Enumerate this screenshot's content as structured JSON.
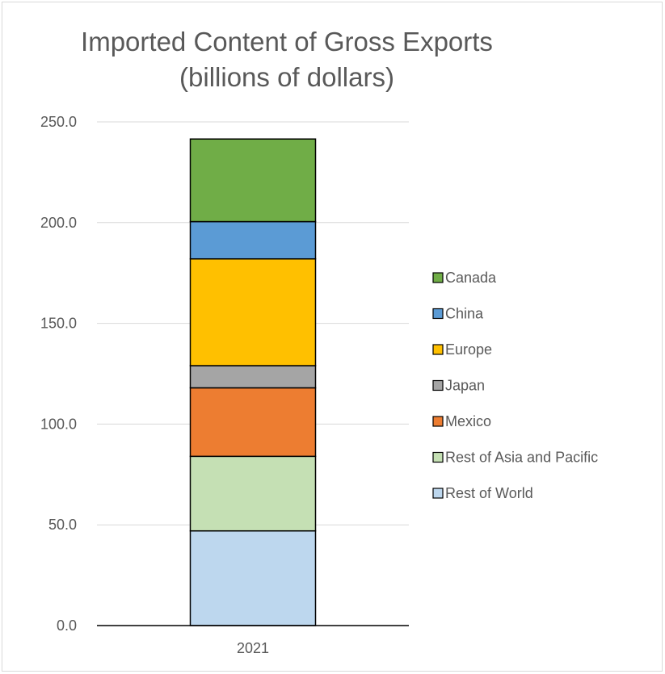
{
  "chart_data": {
    "type": "bar",
    "stacked": true,
    "title_lines": [
      "Imported Content of Gross Exports",
      "(billions of dollars)"
    ],
    "categories": [
      "2021"
    ],
    "ylim": [
      0,
      250
    ],
    "y_ticks": [
      "0.0",
      "50.0",
      "100.0",
      "150.0",
      "200.0",
      "250.0"
    ],
    "y_tick_values": [
      0,
      50,
      100,
      150,
      200,
      250
    ],
    "grid": true,
    "legend_position": "right",
    "series": [
      {
        "name": "Rest of World",
        "values": [
          47.0
        ],
        "color": "#bdd7ee"
      },
      {
        "name": "Rest of Asia and Pacific",
        "values": [
          37.0
        ],
        "color": "#c5e0b4"
      },
      {
        "name": "Mexico",
        "values": [
          34.0
        ],
        "color": "#ed7d31"
      },
      {
        "name": "Japan",
        "values": [
          11.0
        ],
        "color": "#a5a5a5"
      },
      {
        "name": "Europe",
        "values": [
          53.0
        ],
        "color": "#ffc000"
      },
      {
        "name": "China",
        "values": [
          18.5
        ],
        "color": "#5b9bd5"
      },
      {
        "name": "Canada",
        "values": [
          41.0
        ],
        "color": "#70ad47"
      }
    ],
    "legend_order": [
      "Canada",
      "China",
      "Europe",
      "Japan",
      "Mexico",
      "Rest of Asia and Pacific",
      "Rest of World"
    ]
  }
}
